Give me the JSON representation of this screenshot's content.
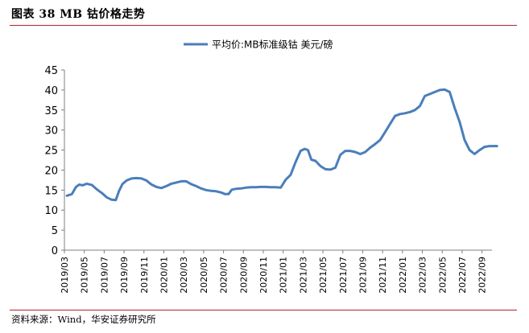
{
  "figure": {
    "title": "图表 38 MB 钴价格走势",
    "source": "资料来源：Wind，华安证券研究所"
  },
  "colors": {
    "line": "#4a7ebb",
    "rule": "#b4232a",
    "axis": "#7f7f7f",
    "text": "#000000"
  },
  "chart_data": {
    "type": "line",
    "title": "",
    "xlabel": "",
    "ylabel": "",
    "ylim": [
      0,
      45
    ],
    "yticks": [
      0,
      5,
      10,
      15,
      20,
      25,
      30,
      35,
      40,
      45
    ],
    "grid": false,
    "legend_position": "top-center",
    "x_tick_labels": [
      "2019/03",
      "2019/05",
      "2019/07",
      "2019/09",
      "2019/11",
      "2020/01",
      "2020/03",
      "2020/05",
      "2020/07",
      "2020/09",
      "2020/11",
      "2021/01",
      "2021/03",
      "2021/05",
      "2021/07",
      "2021/09",
      "2021/11",
      "2022/01",
      "2022/03",
      "2022/05",
      "2022/07",
      "2022/09"
    ],
    "x_start": "2019/03",
    "x_end": "2022/10",
    "series": [
      {
        "name": "平均价:MB标准级钴 美元/磅",
        "points": [
          [
            "2019/03",
            13.6
          ],
          [
            "2019/03",
            14.0
          ],
          [
            "2019/04",
            15.8
          ],
          [
            "2019/04",
            16.4
          ],
          [
            "2019/04",
            16.2
          ],
          [
            "2019/05",
            16.6
          ],
          [
            "2019/05",
            16.3
          ],
          [
            "2019/06",
            15.2
          ],
          [
            "2019/06",
            14.3
          ],
          [
            "2019/07",
            13.2
          ],
          [
            "2019/07",
            12.6
          ],
          [
            "2019/08",
            12.5
          ],
          [
            "2019/08",
            14.8
          ],
          [
            "2019/08",
            16.5
          ],
          [
            "2019/09",
            17.4
          ],
          [
            "2019/09",
            17.9
          ],
          [
            "2019/10",
            18.0
          ],
          [
            "2019/10",
            17.9
          ],
          [
            "2019/11",
            17.4
          ],
          [
            "2019/11",
            16.4
          ],
          [
            "2019/12",
            15.8
          ],
          [
            "2019/12",
            15.5
          ],
          [
            "2020/01",
            16.0
          ],
          [
            "2020/01",
            16.6
          ],
          [
            "2020/02",
            16.9
          ],
          [
            "2020/02",
            17.2
          ],
          [
            "2020/03",
            17.2
          ],
          [
            "2020/03",
            16.5
          ],
          [
            "2020/04",
            16.0
          ],
          [
            "2020/04",
            15.4
          ],
          [
            "2020/05",
            15.0
          ],
          [
            "2020/05",
            14.8
          ],
          [
            "2020/06",
            14.7
          ],
          [
            "2020/06",
            14.4
          ],
          [
            "2020/07",
            14.0
          ],
          [
            "2020/07",
            14.0
          ],
          [
            "2020/07",
            15.1
          ],
          [
            "2020/08",
            15.3
          ],
          [
            "2020/08",
            15.4
          ],
          [
            "2020/09",
            15.6
          ],
          [
            "2020/09",
            15.7
          ],
          [
            "2020/10",
            15.7
          ],
          [
            "2020/10",
            15.8
          ],
          [
            "2020/11",
            15.8
          ],
          [
            "2020/11",
            15.7
          ],
          [
            "2020/12",
            15.7
          ],
          [
            "2020/12",
            15.6
          ],
          [
            "2021/01",
            17.6
          ],
          [
            "2021/01",
            18.8
          ],
          [
            "2021/02",
            22.0
          ],
          [
            "2021/02",
            24.8
          ],
          [
            "2021/03",
            25.3
          ],
          [
            "2021/03",
            25.0
          ],
          [
            "2021/03",
            22.6
          ],
          [
            "2021/04",
            22.3
          ],
          [
            "2021/04",
            21.0
          ],
          [
            "2021/05",
            20.2
          ],
          [
            "2021/05",
            20.1
          ],
          [
            "2021/06",
            20.6
          ],
          [
            "2021/06",
            23.8
          ],
          [
            "2021/07",
            24.8
          ],
          [
            "2021/07",
            24.8
          ],
          [
            "2021/08",
            24.5
          ],
          [
            "2021/08",
            24.0
          ],
          [
            "2021/09",
            24.5
          ],
          [
            "2021/09",
            25.6
          ],
          [
            "2021/10",
            26.5
          ],
          [
            "2021/10",
            27.5
          ],
          [
            "2021/11",
            29.5
          ],
          [
            "2021/11",
            31.5
          ],
          [
            "2021/12",
            33.5
          ],
          [
            "2021/12",
            34.0
          ],
          [
            "2022/01",
            34.2
          ],
          [
            "2022/01",
            34.5
          ],
          [
            "2022/02",
            35.0
          ],
          [
            "2022/02",
            36.0
          ],
          [
            "2022/03",
            38.5
          ],
          [
            "2022/03",
            39.0
          ],
          [
            "2022/04",
            39.5
          ],
          [
            "2022/04",
            40.0
          ],
          [
            "2022/05",
            40.1
          ],
          [
            "2022/05",
            39.5
          ],
          [
            "2022/06",
            35.5
          ],
          [
            "2022/06",
            32.0
          ],
          [
            "2022/07",
            27.5
          ],
          [
            "2022/07",
            25.0
          ],
          [
            "2022/08",
            24.0
          ],
          [
            "2022/08",
            25.0
          ],
          [
            "2022/09",
            25.8
          ],
          [
            "2022/09",
            26.0
          ],
          [
            "2022/10",
            26.0
          ]
        ]
      }
    ]
  }
}
